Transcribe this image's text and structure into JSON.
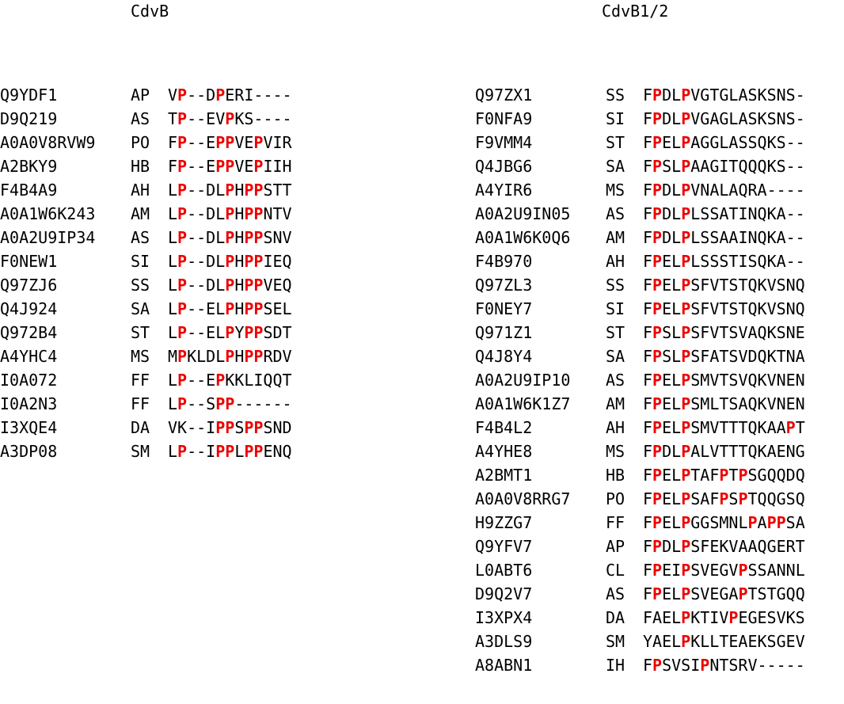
{
  "headings": {
    "left": "CdvB",
    "right": "CdvB1/2"
  },
  "highlight_color": "#ee0000",
  "highlight_residue": "P",
  "left_panel": [
    {
      "acc": "Q9YDF1",
      "org": "AP",
      "seq": "V[P]--D[P]ERI----"
    },
    {
      "acc": "D9Q219",
      "org": "AS",
      "seq": "T[P]--EV[P]KS----"
    },
    {
      "acc": "A0A0V8RVW9",
      "org": "PO",
      "seq": "F[P]--E[PP]VE[P]VIR"
    },
    {
      "acc": "A2BKY9",
      "org": "HB",
      "seq": "F[P]--E[PP]VE[P]IIH"
    },
    {
      "acc": "F4B4A9",
      "org": "AH",
      "seq": "L[P]--DL[P]H[PP]STT"
    },
    {
      "acc": "A0A1W6K243",
      "org": "AM",
      "seq": "L[P]--DL[P]H[PP]NTV"
    },
    {
      "acc": "A0A2U9IP34",
      "org": "AS",
      "seq": "L[P]--DL[P]H[PP]SNV"
    },
    {
      "acc": "F0NEW1",
      "org": "SI",
      "seq": "L[P]--DL[P]H[PP]IEQ"
    },
    {
      "acc": "Q97ZJ6",
      "org": "SS",
      "seq": "L[P]--DL[P]H[PP]VEQ"
    },
    {
      "acc": "Q4J924",
      "org": "SA",
      "seq": "L[P]--EL[P]H[PP]SEL"
    },
    {
      "acc": "Q972B4",
      "org": "ST",
      "seq": "L[P]--EL[P]Y[PP]SDT"
    },
    {
      "acc": "A4YHC4",
      "org": "MS",
      "seq": "M[P]KLDL[P]H[PP]RDV"
    },
    {
      "acc": "I0A072",
      "org": "FF",
      "seq": "L[P]--E[P]KKLIQQT"
    },
    {
      "acc": "I0A2N3",
      "org": "FF",
      "seq": "L[P]--S[PP]------"
    },
    {
      "acc": "I3XQE4",
      "org": "DA",
      "seq": "VK--I[PP]S[PP]SND"
    },
    {
      "acc": "A3DP08",
      "org": "SM",
      "seq": "L[P]--I[PP]L[PP]ENQ"
    }
  ],
  "right_panel": [
    {
      "acc": "Q97ZX1",
      "org": "SS",
      "seq": "F[P]DL[P]VGTGLASKSNS-"
    },
    {
      "acc": "F0NFA9",
      "org": "SI",
      "seq": "F[P]DL[P]VGAGLASKSNS-"
    },
    {
      "acc": "F9VMM4",
      "org": "ST",
      "seq": "F[P]EL[P]AGGLASSQKS--"
    },
    {
      "acc": "Q4JBG6",
      "org": "SA",
      "seq": "F[P]SL[P]AAGITQQQKS--"
    },
    {
      "acc": "A4YIR6",
      "org": "MS",
      "seq": "F[P]DL[P]VNALAQRA----"
    },
    {
      "acc": "A0A2U9IN05",
      "org": "AS",
      "seq": "F[P]DL[P]LSSATINQKA--"
    },
    {
      "acc": "A0A1W6K0Q6",
      "org": "AM",
      "seq": "F[P]DL[P]LSSAAINQKA--"
    },
    {
      "acc": "F4B970",
      "org": "AH",
      "seq": "F[P]EL[P]LSSSTISQKA--"
    },
    {
      "acc": "Q97ZL3",
      "org": "SS",
      "seq": "F[P]EL[P]SFVTSTQKVSNQ"
    },
    {
      "acc": "F0NEY7",
      "org": "SI",
      "seq": "F[P]EL[P]SFVTSTQKVSNQ"
    },
    {
      "acc": "Q971Z1",
      "org": "ST",
      "seq": "F[P]SL[P]SFVTSVAQKSNE"
    },
    {
      "acc": "Q4J8Y4",
      "org": "SA",
      "seq": "F[P]SL[P]SFATSVDQKTNA"
    },
    {
      "acc": "A0A2U9IP10",
      "org": "AS",
      "seq": "F[P]EL[P]SMVTSVQKVNEN"
    },
    {
      "acc": "A0A1W6K1Z7",
      "org": "AM",
      "seq": "F[P]EL[P]SMLTSAQKVNEN"
    },
    {
      "acc": "F4B4L2",
      "org": "AH",
      "seq": "F[P]EL[P]SMVTTTQKAA[P]T"
    },
    {
      "acc": "A4YHE8",
      "org": "MS",
      "seq": "F[P]DL[P]ALVTTTQKAENG"
    },
    {
      "acc": "A2BMT1",
      "org": "HB",
      "seq": "F[P]EL[P]TAF[P]T[P]SGQQDQ"
    },
    {
      "acc": "A0A0V8RRG7",
      "org": "PO",
      "seq": "F[P]EL[P]SAF[P]S[P]TQQGSQ"
    },
    {
      "acc": "H9ZZG7",
      "org": "FF",
      "seq": "F[P]EL[P]GGSMNL[P]A[PP]SA"
    },
    {
      "acc": "Q9YFV7",
      "org": "AP",
      "seq": "F[P]DL[P]SFEKVAAQGERT"
    },
    {
      "acc": "L0ABT6",
      "org": "CL",
      "seq": "F[P]EI[P]SVEGV[P]SSANNL"
    },
    {
      "acc": "D9Q2V7",
      "org": "AS",
      "seq": "F[P]EL[P]SVEGA[P]TSTGQQ"
    },
    {
      "acc": "I3XPX4",
      "org": "DA",
      "seq": "FAEL[P]KTIV[P]EGESVKS"
    },
    {
      "acc": "A3DLS9",
      "org": "SM",
      "seq": "YAEL[P]KLLTEAEKSGEV"
    },
    {
      "acc": "A8ABN1",
      "org": "IH",
      "seq": "F[P]SVSI[P]NTSRV-----"
    }
  ]
}
